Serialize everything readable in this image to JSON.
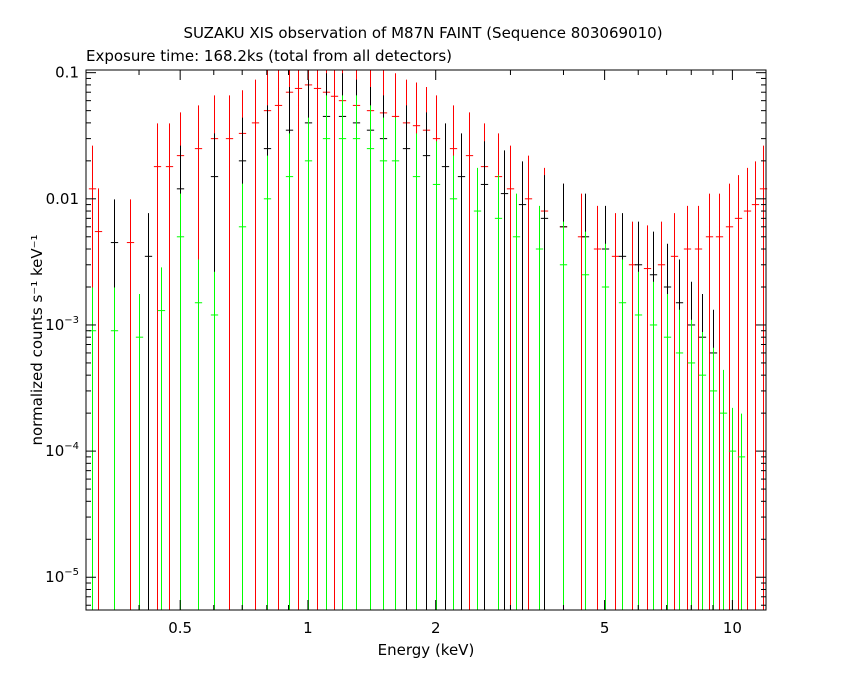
{
  "chart_data": {
    "type": "scatter",
    "title": "SUZAKU XIS observation of M87N FAINT (Sequence 803069010)",
    "subtitle": "Exposure time: 168.2ks (total from all detectors)",
    "xlabel": "Energy (keV)",
    "ylabel": "normalized counts s⁻¹ keV⁻¹",
    "xscale": "log",
    "yscale": "log",
    "xlim": [
      0.3,
      12
    ],
    "ylim": [
      5.5e-06,
      0.105
    ],
    "grid": false,
    "x_ticks": [
      {
        "value": 0.5,
        "label": "0.5"
      },
      {
        "value": 1,
        "label": "1"
      },
      {
        "value": 2,
        "label": "2"
      },
      {
        "value": 5,
        "label": "5"
      },
      {
        "value": 10,
        "label": "10"
      }
    ],
    "y_ticks": [
      {
        "value": 0.1,
        "label": "0.1",
        "base": "",
        "exp": ""
      },
      {
        "value": 0.01,
        "label": "0.01",
        "base": "",
        "exp": ""
      },
      {
        "value": 0.001,
        "label": "",
        "base": "10",
        "exp": "−3"
      },
      {
        "value": 0.0001,
        "label": "",
        "base": "10",
        "exp": "−4"
      },
      {
        "value": 1e-05,
        "label": "",
        "base": "10",
        "exp": "−5"
      }
    ],
    "series": [
      {
        "color": "#ff0000",
        "x": [
          0.31,
          0.32,
          0.38,
          0.44,
          0.47,
          0.5,
          0.55,
          0.6,
          0.65,
          0.7,
          0.75,
          0.8,
          0.85,
          0.9,
          0.95,
          1.0,
          1.05,
          1.1,
          1.15,
          1.2,
          1.3,
          1.4,
          1.5,
          1.6,
          1.7,
          1.8,
          1.9,
          2.0,
          2.2,
          2.4,
          2.6,
          2.8,
          3.0,
          3.3,
          3.6,
          4.0,
          4.4,
          4.8,
          5.3,
          5.8,
          6.3,
          6.8,
          7.3,
          7.8,
          8.3,
          8.8,
          9.3,
          9.8,
          10.3,
          10.8,
          11.3,
          11.8
        ],
        "y": [
          0.012,
          0.0055,
          0.0045,
          0.018,
          0.018,
          0.022,
          0.025,
          0.03,
          0.03,
          0.033,
          0.04,
          0.05,
          0.055,
          0.07,
          0.075,
          0.08,
          0.075,
          0.07,
          0.065,
          0.06,
          0.055,
          0.05,
          0.048,
          0.045,
          0.04,
          0.038,
          0.035,
          0.03,
          0.025,
          0.022,
          0.018,
          0.015,
          0.012,
          0.01,
          0.008,
          0.006,
          0.005,
          0.004,
          0.0035,
          0.003,
          0.0028,
          0.003,
          0.0035,
          0.004,
          0.004,
          0.005,
          0.005,
          0.006,
          0.007,
          0.008,
          0.009,
          0.012
        ]
      },
      {
        "color": "#000000",
        "x": [
          0.35,
          0.42,
          0.5,
          0.6,
          0.7,
          0.8,
          0.9,
          1.0,
          1.1,
          1.2,
          1.3,
          1.4,
          1.5,
          1.7,
          1.9,
          2.1,
          2.3,
          2.6,
          2.9,
          3.2,
          3.6,
          4.0,
          4.5,
          5.0,
          5.5,
          6.0,
          6.5,
          7.0,
          7.5,
          8.0,
          8.5,
          9.0
        ],
        "y": [
          0.0045,
          0.0035,
          0.012,
          0.015,
          0.02,
          0.025,
          0.035,
          0.04,
          0.045,
          0.045,
          0.04,
          0.035,
          0.03,
          0.025,
          0.022,
          0.018,
          0.015,
          0.013,
          0.011,
          0.009,
          0.007,
          0.006,
          0.005,
          0.004,
          0.0035,
          0.003,
          0.0025,
          0.002,
          0.0015,
          0.001,
          0.0008,
          0.0006
        ]
      },
      {
        "color": "#00ff00",
        "x": [
          0.31,
          0.35,
          0.4,
          0.45,
          0.5,
          0.55,
          0.6,
          0.7,
          0.8,
          0.9,
          1.0,
          1.1,
          1.2,
          1.3,
          1.4,
          1.5,
          1.6,
          1.8,
          2.0,
          2.2,
          2.5,
          2.8,
          3.1,
          3.5,
          4.0,
          4.5,
          5.0,
          5.5,
          6.0,
          6.5,
          7.0,
          7.5,
          8.0,
          8.5,
          9.0,
          9.5,
          10.0,
          10.5
        ],
        "y": [
          0.0009,
          0.0009,
          0.0008,
          0.0013,
          0.005,
          0.0015,
          0.0012,
          0.006,
          0.01,
          0.015,
          0.02,
          0.03,
          0.03,
          0.03,
          0.025,
          0.02,
          0.02,
          0.015,
          0.013,
          0.01,
          0.008,
          0.007,
          0.005,
          0.004,
          0.003,
          0.0025,
          0.002,
          0.0015,
          0.0012,
          0.001,
          0.0008,
          0.0006,
          0.0005,
          0.0004,
          0.0003,
          0.0002,
          0.0001,
          9e-05
        ]
      }
    ]
  }
}
